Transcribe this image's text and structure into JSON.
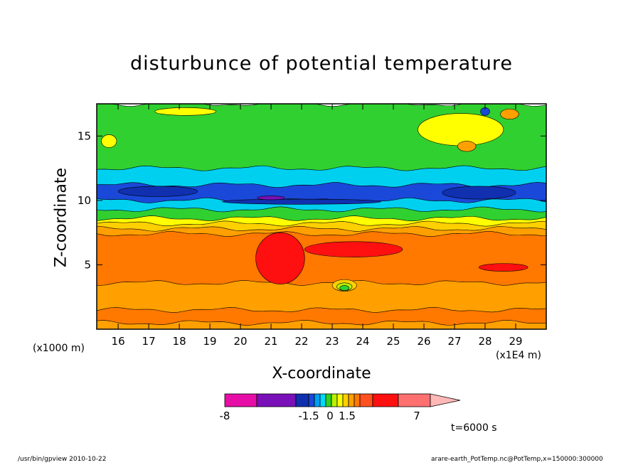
{
  "chart_data": {
    "type": "heatmap",
    "title": "disturbunce of potential temperature",
    "xlabel": "X-coordinate",
    "ylabel": "Z-coordinate",
    "x_unit_left": "(x1000 m)",
    "x_unit_right": "(x1E4 m)",
    "time_label": "t=6000 s",
    "xlim": [
      15.3,
      30.0
    ],
    "ylim": [
      0,
      17.5
    ],
    "x_ticks": [
      16,
      17,
      18,
      19,
      20,
      21,
      22,
      23,
      24,
      25,
      26,
      27,
      28,
      29
    ],
    "y_ticks": [
      5,
      10,
      15
    ],
    "colorbar": {
      "labels": [
        "-8",
        "-1.5",
        "0",
        "1.5",
        "7"
      ],
      "colors": [
        "#e60ea6",
        "#7a10b8",
        "#1030b0",
        "#1a48d8",
        "#00a0f0",
        "#00d8ff",
        "#30d020",
        "#b8f000",
        "#ffff00",
        "#ffd000",
        "#ffa000",
        "#ff7800",
        "#ff5020",
        "#ff1010",
        "#ff7070",
        "#ffb8b8"
      ]
    },
    "bands": [
      {
        "z": 17.5,
        "color": "#30d030"
      },
      {
        "z": 12.5,
        "color": "#00d0f0"
      },
      {
        "z": 11.2,
        "color": "#1a48d8"
      },
      {
        "z": 10.0,
        "color": "#00d0f0"
      },
      {
        "z": 9.3,
        "color": "#30d030"
      },
      {
        "z": 8.6,
        "color": "#ffff00"
      },
      {
        "z": 8.2,
        "color": "#ffd000"
      },
      {
        "z": 7.8,
        "color": "#ffa000"
      },
      {
        "z": 7.4,
        "color": "#ff7800"
      },
      {
        "z": 3.6,
        "color": "#ffa000"
      },
      {
        "z": 1.5,
        "color": "#ff7800"
      },
      {
        "z": 0.5,
        "color": "#ffa000"
      }
    ],
    "features": [
      {
        "kind": "warm-core",
        "x": 21.3,
        "z": 5.5,
        "w": 1.6,
        "h": 4.0,
        "color": "#ff1010"
      },
      {
        "kind": "warm-tongue",
        "x": 23.7,
        "z": 6.2,
        "w": 3.2,
        "h": 1.2,
        "color": "#ff1010"
      },
      {
        "kind": "warm-right",
        "x": 28.6,
        "z": 4.8,
        "w": 1.6,
        "h": 0.6,
        "color": "#ff1010"
      },
      {
        "kind": "cold-core",
        "x": 22.0,
        "z": 9.9,
        "w": 5.2,
        "h": 0.4,
        "color": "#1030b0"
      },
      {
        "kind": "cold-core",
        "x": 21.0,
        "z": 10.2,
        "w": 0.9,
        "h": 0.3,
        "color": "#7a10b8"
      },
      {
        "kind": "cold-left",
        "x": 17.3,
        "z": 10.7,
        "w": 2.6,
        "h": 0.8,
        "color": "#1030b0"
      },
      {
        "kind": "cold-right",
        "x": 27.8,
        "z": 10.6,
        "w": 2.4,
        "h": 1.0,
        "color": "#1030b0"
      },
      {
        "kind": "bubble",
        "x": 23.4,
        "z": 3.4,
        "w": 0.8,
        "h": 0.9,
        "color": "#ffd000"
      },
      {
        "kind": "bubble",
        "x": 23.4,
        "z": 3.3,
        "w": 0.5,
        "h": 0.6,
        "color": "#b8f000"
      },
      {
        "kind": "bubble",
        "x": 23.4,
        "z": 3.2,
        "w": 0.3,
        "h": 0.4,
        "color": "#30d030"
      },
      {
        "kind": "upper-warm",
        "x": 27.2,
        "z": 15.5,
        "w": 2.8,
        "h": 2.5,
        "color": "#ffff00"
      },
      {
        "kind": "upper-warm",
        "x": 28.8,
        "z": 16.7,
        "w": 0.6,
        "h": 0.8,
        "color": "#ffa000"
      },
      {
        "kind": "upper-cold",
        "x": 28.0,
        "z": 16.9,
        "w": 0.3,
        "h": 0.6,
        "color": "#1a48d8"
      },
      {
        "kind": "upper-warm",
        "x": 27.4,
        "z": 14.2,
        "w": 0.6,
        "h": 0.8,
        "color": "#ffa000"
      },
      {
        "kind": "upper-left",
        "x": 15.7,
        "z": 14.6,
        "w": 0.5,
        "h": 1.0,
        "color": "#ffff00"
      },
      {
        "kind": "upper-left",
        "x": 18.2,
        "z": 16.9,
        "w": 2.0,
        "h": 0.6,
        "color": "#ffff00"
      }
    ]
  },
  "footer": {
    "left": "/usr/bin/gpview  2010-10-22",
    "right": "arare-earth_PotTemp.nc@PotTemp,x=150000:300000"
  }
}
